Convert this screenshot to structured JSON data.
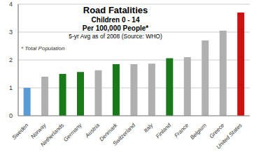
{
  "chart_data": {
    "type": "bar",
    "title": "Road Fatalities",
    "subtitle": [
      "Children 0 - 14",
      "Per 100,000 People*",
      "5-yr Avg as of 2008 (Source: WHO)"
    ],
    "annotations": [
      "* Total Population"
    ],
    "categories": [
      "Sweden",
      "Norway",
      "Netherlands",
      "Germany",
      "Austria",
      "Denmark",
      "Switzerland",
      "Italy",
      "Finland",
      "France",
      "Belgium",
      "Greece",
      "United States"
    ],
    "values": [
      1.0,
      1.4,
      1.5,
      1.57,
      1.63,
      1.85,
      1.85,
      1.87,
      2.06,
      2.1,
      2.7,
      3.05,
      3.7
    ],
    "colors": [
      "#5b9bd5",
      "#b0b0b0",
      "#1a7a1a",
      "#1a7a1a",
      "#b0b0b0",
      "#1a7a1a",
      "#b0b0b0",
      "#b0b0b0",
      "#1a7a1a",
      "#b0b0b0",
      "#b0b0b0",
      "#b0b0b0",
      "#cc1111"
    ],
    "ylim": [
      0,
      4
    ],
    "yticks": [
      0,
      1,
      2,
      3,
      4
    ],
    "grid": true
  }
}
